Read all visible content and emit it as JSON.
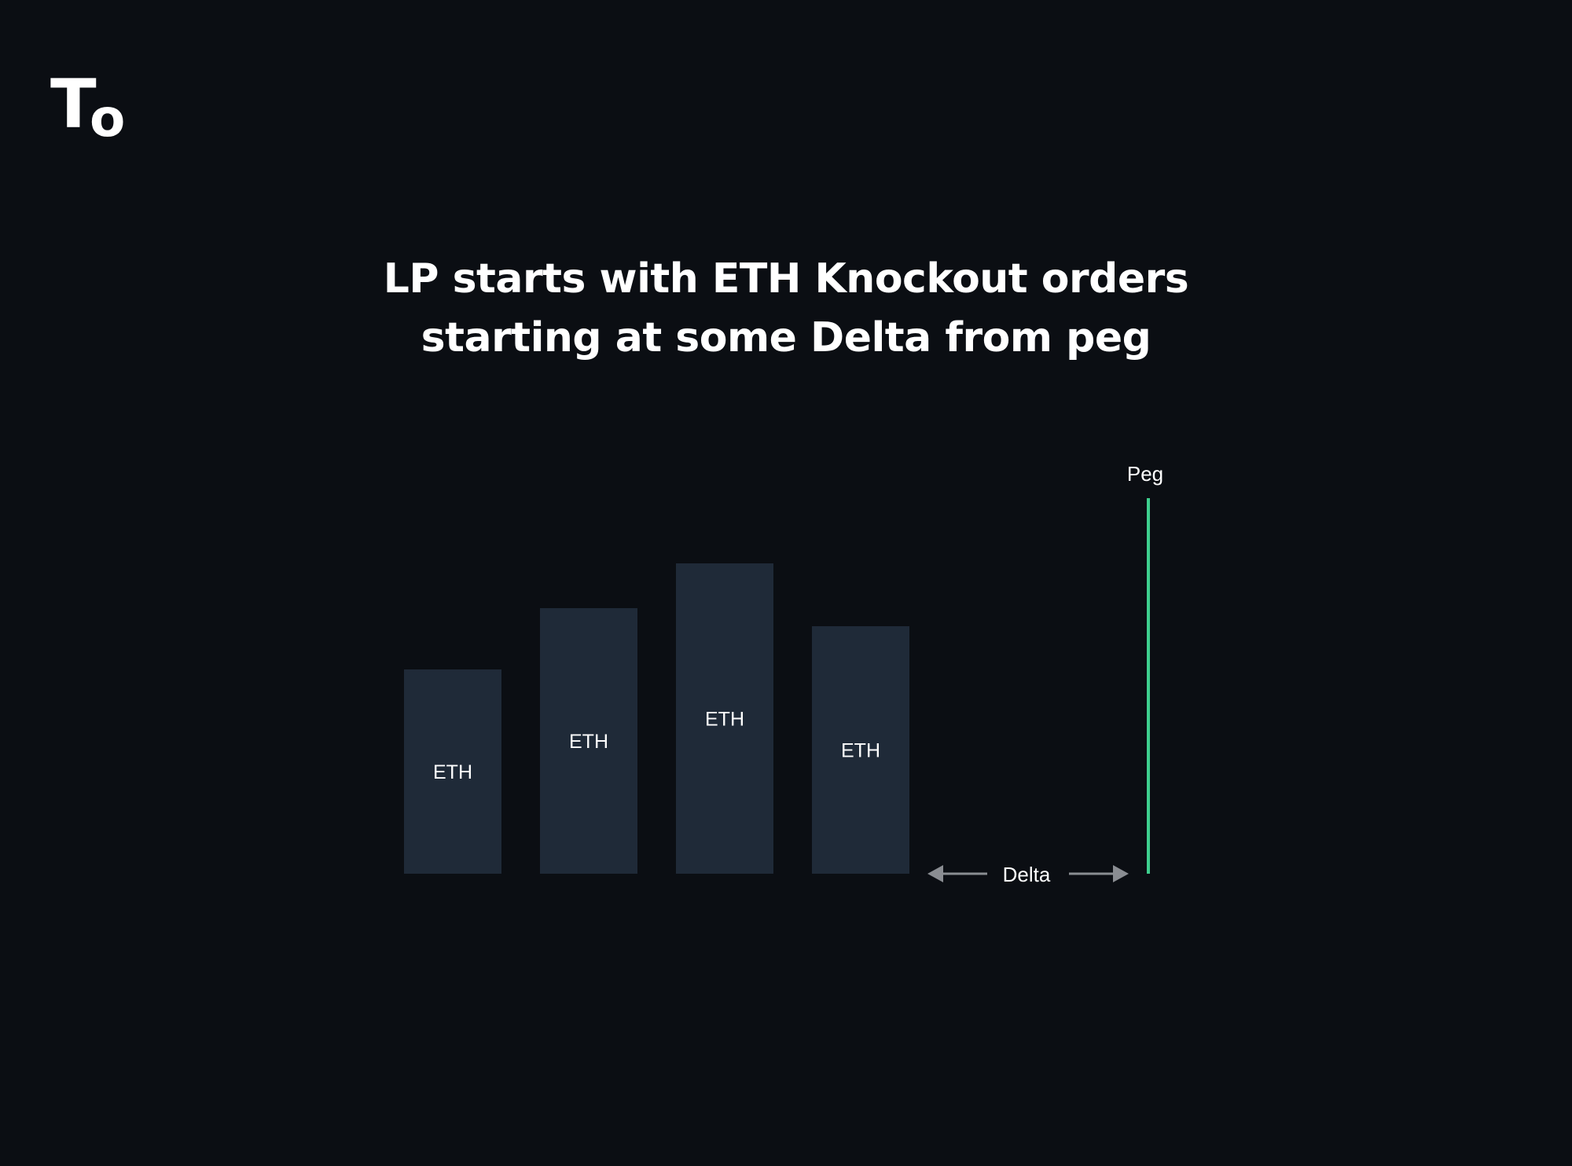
{
  "logo": {
    "glyph_big": "T",
    "glyph_small": "o"
  },
  "title": {
    "line1": "LP starts with ETH Knockout orders",
    "line2": "starting at some Delta from peg"
  },
  "diagram": {
    "orders": [
      {
        "label": "ETH",
        "size": 0.5
      },
      {
        "label": "ETH",
        "size": 0.65
      },
      {
        "label": "ETH",
        "size": 0.76
      },
      {
        "label": "ETH",
        "size": 0.605
      }
    ],
    "peg_label": "Peg",
    "delta_label": "Delta",
    "colors": {
      "background": "#0b0e13",
      "order_bar": "#1f2a38",
      "peg_line": "#3ecf8e",
      "arrow": "#8a8d92"
    }
  }
}
